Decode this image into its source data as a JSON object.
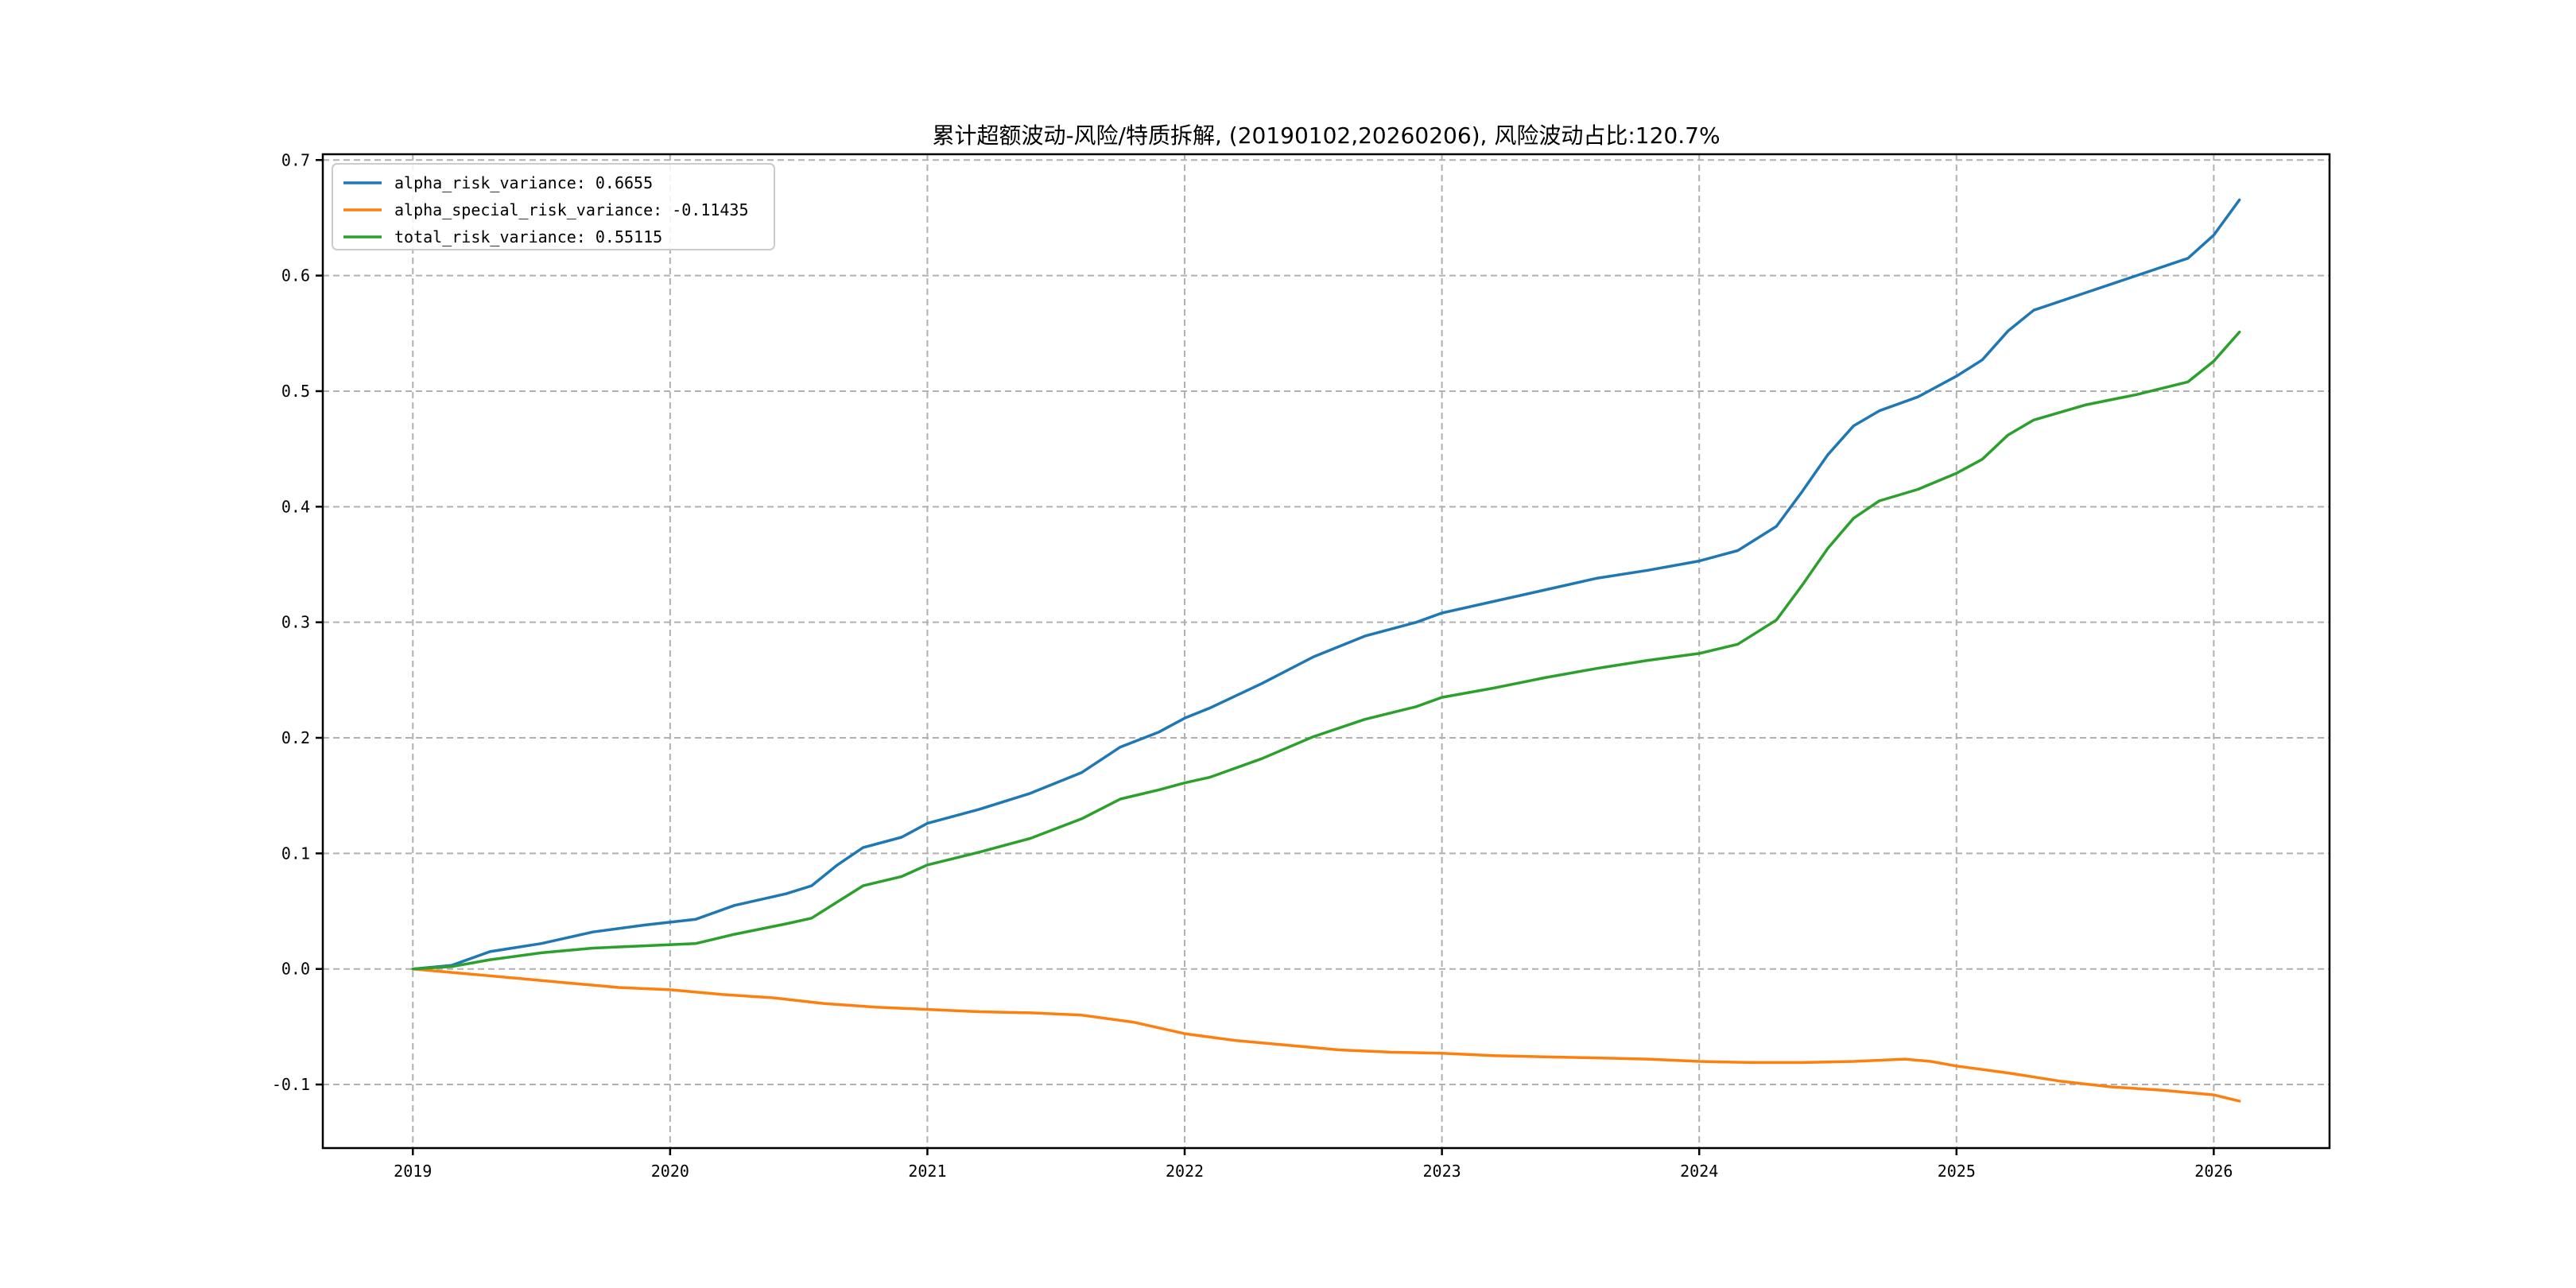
{
  "chart_data": {
    "type": "line",
    "title": "累计超额波动-风险/特质拆解, (20190102,20260206), 风险波动占比:120.7%",
    "xlabel": "",
    "ylabel": "",
    "xlim": [
      2018.65,
      2026.45
    ],
    "ylim": [
      -0.155,
      0.705
    ],
    "x_ticks": [
      2019,
      2020,
      2021,
      2022,
      2023,
      2024,
      2025,
      2026
    ],
    "x_tick_labels": [
      "2019",
      "2020",
      "2021",
      "2022",
      "2023",
      "2024",
      "2025",
      "2026"
    ],
    "y_ticks": [
      -0.1,
      0.0,
      0.1,
      0.2,
      0.3,
      0.4,
      0.5,
      0.6,
      0.7
    ],
    "y_tick_labels": [
      "-0.1",
      "0.0",
      "0.1",
      "0.2",
      "0.3",
      "0.4",
      "0.5",
      "0.6",
      "0.7"
    ],
    "grid": true,
    "legend_position": "top-left",
    "series": [
      {
        "name": "alpha_risk_variance: 0.6655",
        "color": "#1f77b4",
        "points": [
          [
            2019.0,
            0.0
          ],
          [
            2019.15,
            0.003
          ],
          [
            2019.3,
            0.015
          ],
          [
            2019.5,
            0.022
          ],
          [
            2019.7,
            0.032
          ],
          [
            2019.9,
            0.038
          ],
          [
            2020.1,
            0.043
          ],
          [
            2020.25,
            0.055
          ],
          [
            2020.45,
            0.065
          ],
          [
            2020.55,
            0.072
          ],
          [
            2020.65,
            0.09
          ],
          [
            2020.75,
            0.105
          ],
          [
            2020.9,
            0.114
          ],
          [
            2021.0,
            0.126
          ],
          [
            2021.2,
            0.138
          ],
          [
            2021.4,
            0.152
          ],
          [
            2021.6,
            0.17
          ],
          [
            2021.75,
            0.192
          ],
          [
            2021.9,
            0.205
          ],
          [
            2022.0,
            0.217
          ],
          [
            2022.1,
            0.226
          ],
          [
            2022.3,
            0.247
          ],
          [
            2022.5,
            0.27
          ],
          [
            2022.7,
            0.288
          ],
          [
            2022.9,
            0.3
          ],
          [
            2023.0,
            0.308
          ],
          [
            2023.2,
            0.318
          ],
          [
            2023.4,
            0.328
          ],
          [
            2023.6,
            0.338
          ],
          [
            2023.8,
            0.345
          ],
          [
            2024.0,
            0.353
          ],
          [
            2024.15,
            0.362
          ],
          [
            2024.3,
            0.383
          ],
          [
            2024.4,
            0.413
          ],
          [
            2024.5,
            0.445
          ],
          [
            2024.6,
            0.47
          ],
          [
            2024.7,
            0.483
          ],
          [
            2024.85,
            0.495
          ],
          [
            2025.0,
            0.513
          ],
          [
            2025.1,
            0.527
          ],
          [
            2025.2,
            0.552
          ],
          [
            2025.3,
            0.57
          ],
          [
            2025.5,
            0.585
          ],
          [
            2025.7,
            0.6
          ],
          [
            2025.9,
            0.615
          ],
          [
            2026.0,
            0.635
          ],
          [
            2026.1,
            0.6655
          ]
        ]
      },
      {
        "name": "alpha_special_risk_variance: -0.11435",
        "color": "#ff7f0e",
        "points": [
          [
            2019.0,
            0.0
          ],
          [
            2019.2,
            -0.004
          ],
          [
            2019.4,
            -0.008
          ],
          [
            2019.6,
            -0.012
          ],
          [
            2019.8,
            -0.016
          ],
          [
            2020.0,
            -0.018
          ],
          [
            2020.2,
            -0.022
          ],
          [
            2020.4,
            -0.025
          ],
          [
            2020.6,
            -0.03
          ],
          [
            2020.8,
            -0.033
          ],
          [
            2021.0,
            -0.035
          ],
          [
            2021.2,
            -0.037
          ],
          [
            2021.4,
            -0.038
          ],
          [
            2021.6,
            -0.04
          ],
          [
            2021.8,
            -0.046
          ],
          [
            2022.0,
            -0.056
          ],
          [
            2022.2,
            -0.062
          ],
          [
            2022.4,
            -0.066
          ],
          [
            2022.6,
            -0.07
          ],
          [
            2022.8,
            -0.072
          ],
          [
            2023.0,
            -0.073
          ],
          [
            2023.2,
            -0.075
          ],
          [
            2023.4,
            -0.076
          ],
          [
            2023.6,
            -0.077
          ],
          [
            2023.8,
            -0.078
          ],
          [
            2024.0,
            -0.08
          ],
          [
            2024.2,
            -0.081
          ],
          [
            2024.4,
            -0.081
          ],
          [
            2024.6,
            -0.08
          ],
          [
            2024.8,
            -0.078
          ],
          [
            2024.9,
            -0.08
          ],
          [
            2025.0,
            -0.084
          ],
          [
            2025.2,
            -0.09
          ],
          [
            2025.4,
            -0.097
          ],
          [
            2025.6,
            -0.102
          ],
          [
            2025.8,
            -0.105
          ],
          [
            2026.0,
            -0.109
          ],
          [
            2026.1,
            -0.11435
          ]
        ]
      },
      {
        "name": "total_risk_variance: 0.55115",
        "color": "#2ca02c",
        "points": [
          [
            2019.0,
            0.0
          ],
          [
            2019.15,
            0.002
          ],
          [
            2019.3,
            0.008
          ],
          [
            2019.5,
            0.014
          ],
          [
            2019.7,
            0.018
          ],
          [
            2019.9,
            0.02
          ],
          [
            2020.1,
            0.022
          ],
          [
            2020.25,
            0.03
          ],
          [
            2020.45,
            0.039
          ],
          [
            2020.55,
            0.044
          ],
          [
            2020.65,
            0.058
          ],
          [
            2020.75,
            0.072
          ],
          [
            2020.9,
            0.08
          ],
          [
            2021.0,
            0.09
          ],
          [
            2021.2,
            0.101
          ],
          [
            2021.4,
            0.113
          ],
          [
            2021.6,
            0.13
          ],
          [
            2021.75,
            0.147
          ],
          [
            2021.9,
            0.155
          ],
          [
            2022.0,
            0.161
          ],
          [
            2022.1,
            0.166
          ],
          [
            2022.3,
            0.182
          ],
          [
            2022.5,
            0.201
          ],
          [
            2022.7,
            0.216
          ],
          [
            2022.9,
            0.227
          ],
          [
            2023.0,
            0.235
          ],
          [
            2023.2,
            0.243
          ],
          [
            2023.4,
            0.252
          ],
          [
            2023.6,
            0.26
          ],
          [
            2023.8,
            0.267
          ],
          [
            2024.0,
            0.273
          ],
          [
            2024.15,
            0.281
          ],
          [
            2024.3,
            0.302
          ],
          [
            2024.4,
            0.332
          ],
          [
            2024.5,
            0.364
          ],
          [
            2024.6,
            0.39
          ],
          [
            2024.7,
            0.405
          ],
          [
            2024.85,
            0.415
          ],
          [
            2025.0,
            0.429
          ],
          [
            2025.1,
            0.441
          ],
          [
            2025.2,
            0.462
          ],
          [
            2025.3,
            0.475
          ],
          [
            2025.5,
            0.488
          ],
          [
            2025.7,
            0.497
          ],
          [
            2025.9,
            0.508
          ],
          [
            2026.0,
            0.526
          ],
          [
            2026.1,
            0.55115
          ]
        ]
      }
    ]
  }
}
